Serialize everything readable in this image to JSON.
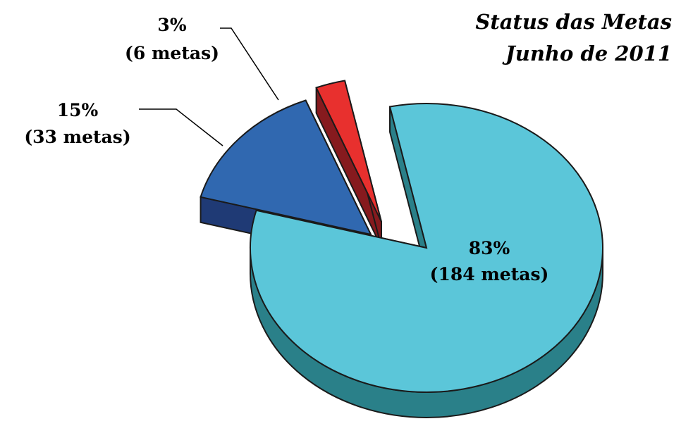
{
  "chart_data": {
    "type": "pie",
    "title_lines": [
      "Status das Metas",
      "Junho de 2011"
    ],
    "slices": [
      {
        "value": 184,
        "percent_label": "83%",
        "count_label": "(184 metas)",
        "top_color": "#5BC6D9",
        "side_color": "#2A8089"
      },
      {
        "value": 33,
        "percent_label": "15%",
        "count_label": "(33 metas)",
        "top_color": "#3068B0",
        "side_color": "#1F3A75"
      },
      {
        "value": 6,
        "percent_label": "3%",
        "count_label": "(6 metas)",
        "top_color": "#E8302E",
        "side_color": "#861A1E"
      }
    ]
  }
}
